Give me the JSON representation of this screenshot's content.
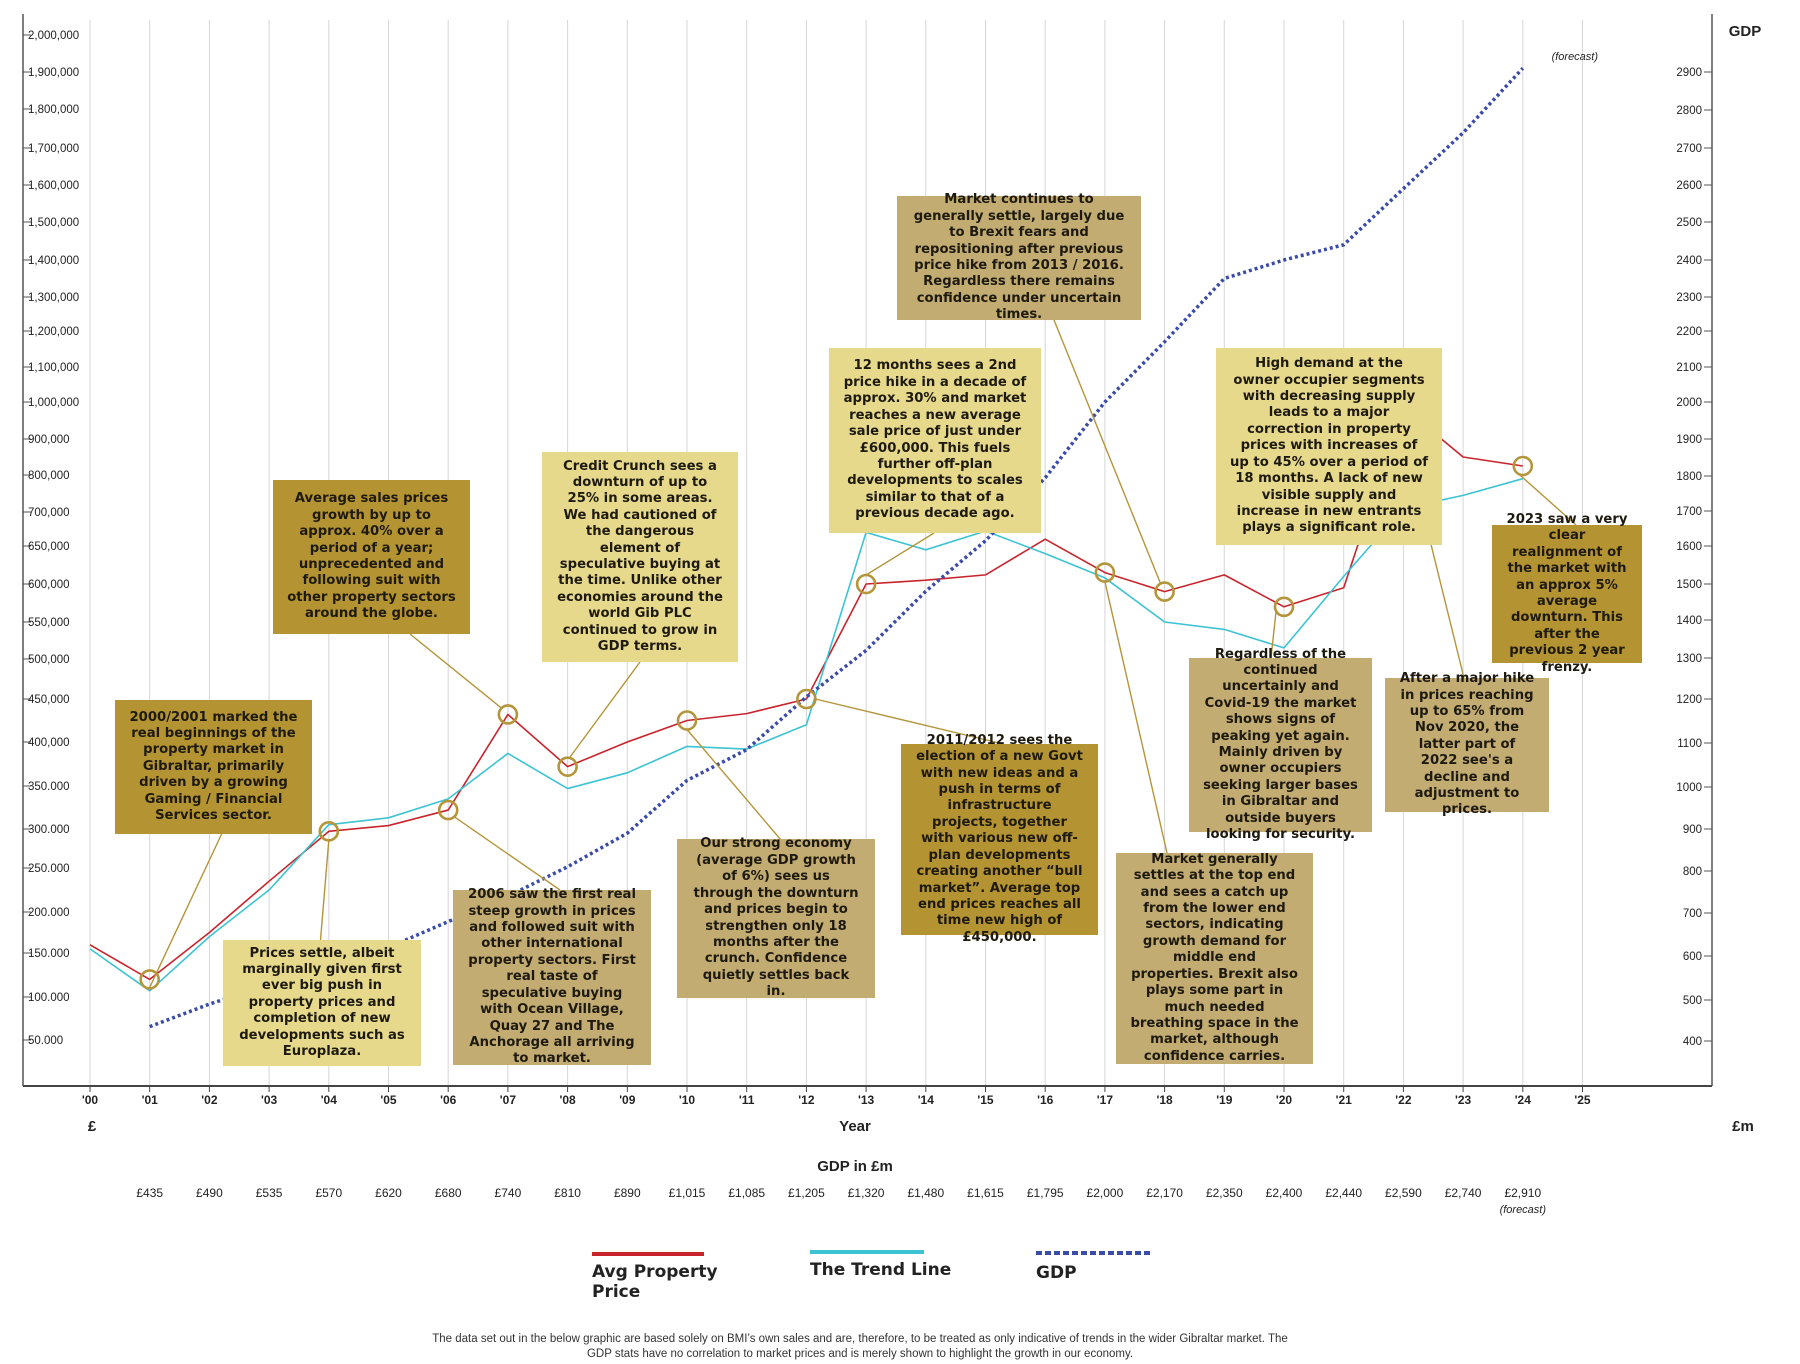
{
  "chart_data": {
    "type": "line",
    "x": [
      "'00",
      "'01",
      "'02",
      "'03",
      "'04",
      "'05",
      "'06",
      "'07",
      "'08",
      "'09",
      "'10",
      "'11",
      "'12",
      "'13",
      "'14",
      "'15",
      "'16",
      "'17",
      "'18",
      "'19",
      "'20",
      "'21",
      "'22",
      "'23",
      "'24",
      "'25"
    ],
    "xlabel": "Year",
    "y_left_unit": "£",
    "y_right_unit": "£m",
    "y_right_title": "GDP",
    "left_ticks": [
      {
        "v": 50000,
        "label": "50.000"
      },
      {
        "v": 100000,
        "label": "100.000"
      },
      {
        "v": 150000,
        "label": "150.000"
      },
      {
        "v": 200000,
        "label": "200.000"
      },
      {
        "v": 250000,
        "label": "250.000"
      },
      {
        "v": 300000,
        "label": "300.000"
      },
      {
        "v": 350000,
        "label": "350.000"
      },
      {
        "v": 400000,
        "label": "400,000"
      },
      {
        "v": 450000,
        "label": "450,000"
      },
      {
        "v": 500000,
        "label": "500,000"
      },
      {
        "v": 550000,
        "label": "550,000"
      },
      {
        "v": 600000,
        "label": "600,000"
      },
      {
        "v": 650000,
        "label": "650,000"
      },
      {
        "v": 700000,
        "label": "700,000"
      },
      {
        "v": 800000,
        "label": "800,000"
      },
      {
        "v": 900000,
        "label": "900,000"
      },
      {
        "v": 1000000,
        "label": "1,000,000"
      },
      {
        "v": 1100000,
        "label": "1,100,000"
      },
      {
        "v": 1200000,
        "label": "1,200,000"
      },
      {
        "v": 1300000,
        "label": "1,300,000"
      },
      {
        "v": 1400000,
        "label": "1,400,000"
      },
      {
        "v": 1500000,
        "label": "1,500,000"
      },
      {
        "v": 1600000,
        "label": "1,600,000"
      },
      {
        "v": 1700000,
        "label": "1,700,000"
      },
      {
        "v": 1800000,
        "label": "1,800,000"
      },
      {
        "v": 1900000,
        "label": "1,900,000"
      },
      {
        "v": 2000000,
        "label": "2,000,000"
      }
    ],
    "right_ticks": [
      400,
      500,
      600,
      700,
      800,
      900,
      1000,
      1100,
      1200,
      1300,
      1400,
      1500,
      1600,
      1700,
      1800,
      1900,
      2000,
      2100,
      2200,
      2300,
      2400,
      2500,
      2600,
      2700,
      2800,
      2900
    ],
    "series": [
      {
        "name": "Avg Property Price",
        "color": "#c8242c",
        "dashed": false,
        "axis": "left",
        "x": [
          0,
          1,
          2,
          3,
          4,
          5,
          6,
          7,
          8,
          9,
          10,
          11,
          12,
          13,
          14,
          15,
          16,
          17,
          18,
          19,
          20,
          21,
          22,
          23,
          24
        ],
        "values": [
          160000,
          120000,
          175000,
          235000,
          297000,
          304000,
          322000,
          432000,
          372000,
          400000,
          425000,
          433000,
          450000,
          600000,
          605000,
          612000,
          660000,
          615000,
          590000,
          612000,
          570000,
          595000,
          985000,
          850000,
          825000
        ]
      },
      {
        "name": "The Trend Line",
        "color": "#3cc3d4",
        "dashed": false,
        "axis": "left",
        "x": [
          0,
          1,
          2,
          3,
          4,
          5,
          6,
          7,
          8,
          9,
          10,
          11,
          12,
          13,
          14,
          15,
          16,
          17,
          18,
          19,
          20,
          21,
          22,
          23,
          24
        ],
        "values": [
          155000,
          107000,
          170000,
          225000,
          305000,
          313000,
          335000,
          387000,
          347000,
          365000,
          395000,
          392000,
          420000,
          670000,
          645000,
          672000,
          640000,
          608000,
          550000,
          540000,
          515000,
          610000,
          710000,
          745000,
          790000
        ]
      },
      {
        "name": "GDP",
        "color": "#3b4ba8",
        "dashed": true,
        "axis": "right",
        "x": [
          1,
          2,
          3,
          4,
          5,
          6,
          7,
          8,
          9,
          10,
          11,
          12,
          13,
          14,
          15,
          16,
          17,
          18,
          19,
          20,
          21,
          22,
          23,
          24
        ],
        "values": [
          435,
          490,
          535,
          570,
          620,
          680,
          740,
          810,
          890,
          1015,
          1085,
          1205,
          1320,
          1480,
          1615,
          1795,
          2000,
          2170,
          2350,
          2400,
          2440,
          2590,
          2740,
          2910
        ]
      }
    ],
    "markers": [
      {
        "x": 1,
        "v": 120000
      },
      {
        "x": 4,
        "v": 297000
      },
      {
        "x": 6,
        "v": 322000
      },
      {
        "x": 7,
        "v": 432000
      },
      {
        "x": 8,
        "v": 372000
      },
      {
        "x": 10,
        "v": 425000
      },
      {
        "x": 12,
        "v": 450000
      },
      {
        "x": 13,
        "v": 600000
      },
      {
        "x": 17,
        "v": 615000
      },
      {
        "x": 18,
        "v": 590000
      },
      {
        "x": 20,
        "v": 570000
      },
      {
        "x": 21.8,
        "v": 880000
      },
      {
        "x": 22,
        "v": 985000
      },
      {
        "x": 24,
        "v": 825000
      }
    ],
    "forecast_note": "(forecast)",
    "gdp_row_title": "GDP in £m",
    "gdp_row": [
      {
        "x": 1,
        "label": "£435"
      },
      {
        "x": 2,
        "label": "£490"
      },
      {
        "x": 3,
        "label": "£535"
      },
      {
        "x": 4,
        "label": "£570"
      },
      {
        "x": 5,
        "label": "£620"
      },
      {
        "x": 6,
        "label": "£680"
      },
      {
        "x": 7,
        "label": "£740"
      },
      {
        "x": 8,
        "label": "£810"
      },
      {
        "x": 9,
        "label": "£890"
      },
      {
        "x": 10,
        "label": "£1,015"
      },
      {
        "x": 11,
        "label": "£1,085"
      },
      {
        "x": 12,
        "label": "£1,205"
      },
      {
        "x": 13,
        "label": "£1,320"
      },
      {
        "x": 14,
        "label": "£1,480"
      },
      {
        "x": 15,
        "label": "£1,615"
      },
      {
        "x": 16,
        "label": "£1,795"
      },
      {
        "x": 17,
        "label": "£2,000"
      },
      {
        "x": 18,
        "label": "£2,170"
      },
      {
        "x": 19,
        "label": "£2,350"
      },
      {
        "x": 20,
        "label": "£2,400"
      },
      {
        "x": 21,
        "label": "£2,440"
      },
      {
        "x": 22,
        "label": "£2,590"
      },
      {
        "x": 23,
        "label": "£2,740"
      },
      {
        "x": 24,
        "label": "£2,910"
      }
    ],
    "annotations": [
      "2000/2001 marked the real beginnings of the property market in Gibraltar, primarily driven by a growing Gaming / Financial Services sector.",
      "Prices settle, albeit marginally given first ever big push in property prices and completion of new developments such as Europlaza.",
      "Average sales prices growth by up to approx. 40% over a period of a year; unprecedented and following suit with other property sectors around the globe.",
      "2006 saw the first real steep growth in prices and followed suit with other international property sectors. First real taste of speculative buying with Ocean Village, Quay 27 and The Anchorage all arriving to market.",
      "Credit Crunch sees a downturn of up to 25% in some areas. We had cautioned of the dangerous element of speculative buying at the time. Unlike other economies around the world Gib PLC continued to grow in GDP terms.",
      "Our strong economy (average GDP growth of 6%) sees us through the downturn and prices begin to strengthen only 18 months after the crunch. Confidence quietly settles back in.",
      "12 months sees a 2nd price hike in a decade of approx. 30% and market reaches a new average sale price of just under £600,000. This fuels further off-plan developments to scales similar to that of a previous decade ago.",
      "2011/2012 sees the election of a new Govt with new ideas and a push in terms of infrastructure projects, together with various new off-plan developments creating another “bull market”. Average top end prices reaches all time new high of £450,000.",
      "Market continues to generally settle, largely due to Brexit fears and repositioning after previous price hike from 2013 / 2016. Regardless there remains confidence under uncertain times.",
      "Market generally settles at the top end and sees a catch up from the lower end sectors, indicating growth demand for middle end properties. Brexit also plays some part in much needed breathing space in the market, although confidence carries.",
      "Regardless of the continued uncertainly and Covid-19 the market shows signs of peaking yet again. Mainly driven by owner occupiers seeking larger bases in Gibraltar and outside buyers looking for security.",
      "High demand at the owner occupier segments with decreasing supply leads to a major correction in property prices with increases of up to 45% over a period of 18 months. A lack of new visible supply and increase in new entrants plays a significant role.",
      "After a major hike in prices reaching up to 65% from Nov 2020, the latter part of 2022 see's a decline and adjustment to prices.",
      "2023 saw a very clear realignment of the market with an approx 5% average downturn. This after the previous 2 year frenzy."
    ],
    "legend": [
      "Avg Property Price",
      "The Trend Line",
      "GDP"
    ],
    "legend_placement": "bottom-center",
    "disclaimer": "The data set out in the below graphic are based solely on BMI’s own sales and are, therefore, to be treated as only indicative of trends in the wider Gibraltar market. The GDP stats have no correlation to market prices and is merely shown to highlight the growth in our economy."
  }
}
